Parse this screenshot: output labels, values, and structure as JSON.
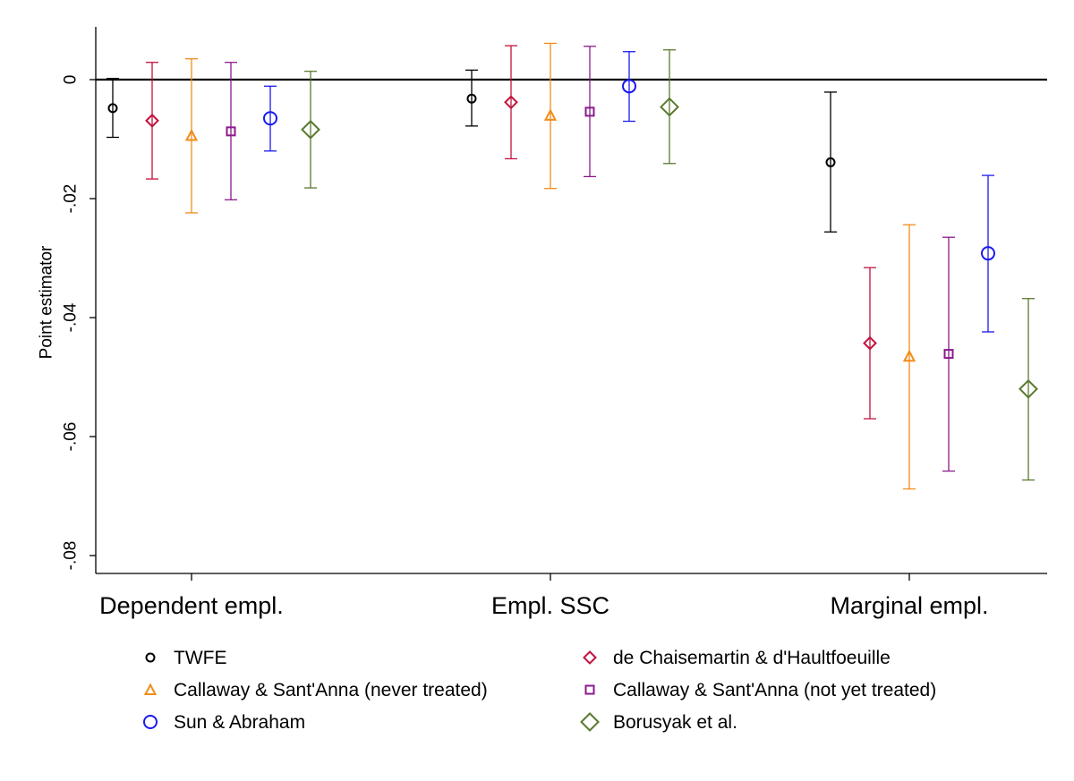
{
  "chart_data": {
    "type": "scatter",
    "title": "",
    "ylabel": "Point estimator",
    "xlabel": "",
    "ylim": [
      -0.08,
      0.008
    ],
    "yticks": [
      0,
      -0.02,
      -0.04,
      -0.06,
      -0.08
    ],
    "ytick_labels": [
      "0",
      "-.02",
      "-.04",
      "-.06",
      "-.08"
    ],
    "categories": [
      "Dependent empl.",
      "Empl. SSC",
      "Marginal empl."
    ],
    "reference_line": 0,
    "series": [
      {
        "name": "TWFE",
        "marker": "circle-small",
        "color": "#000000",
        "estimates": [
          -0.0048,
          -0.0032,
          -0.0139
        ],
        "ci_low": [
          -0.0097,
          -0.0078,
          -0.0256
        ],
        "ci_high": [
          0.0002,
          0.0016,
          -0.0021
        ]
      },
      {
        "name": "de Chaisemartin & d'Haultfoeuille",
        "marker": "diamond-small",
        "color": "#c1133d",
        "estimates": [
          -0.0069,
          -0.0038,
          -0.0443
        ],
        "ci_low": [
          -0.0167,
          -0.0133,
          -0.057
        ],
        "ci_high": [
          0.0029,
          0.0057,
          -0.0316
        ]
      },
      {
        "name": "Callaway & Sant'Anna (never treated)",
        "marker": "triangle",
        "color": "#f28c1a",
        "estimates": [
          -0.0094,
          -0.006,
          -0.0465
        ],
        "ci_low": [
          -0.0224,
          -0.0183,
          -0.0688
        ],
        "ci_high": [
          0.0035,
          0.0061,
          -0.0244
        ]
      },
      {
        "name": "Callaway & Sant'Anna (not yet treated)",
        "marker": "square",
        "color": "#8b1a8b",
        "estimates": [
          -0.0087,
          -0.0054,
          -0.0461
        ],
        "ci_low": [
          -0.0202,
          -0.0163,
          -0.0658
        ],
        "ci_high": [
          0.0029,
          0.0056,
          -0.0265
        ]
      },
      {
        "name": "Sun & Abraham",
        "marker": "circle",
        "color": "#1a1aee",
        "estimates": [
          -0.0065,
          -0.0011,
          -0.0292
        ],
        "ci_low": [
          -0.012,
          -0.007,
          -0.0424
        ],
        "ci_high": [
          -0.0011,
          0.0047,
          -0.0161
        ]
      },
      {
        "name": "Borusyak et al.",
        "marker": "diamond",
        "color": "#5a7a2e",
        "estimates": [
          -0.0084,
          -0.0046,
          -0.052
        ],
        "ci_low": [
          -0.0182,
          -0.0141,
          -0.0673
        ],
        "ci_high": [
          0.0014,
          0.005,
          -0.0368
        ]
      }
    ],
    "legend_placement": "bottom"
  }
}
